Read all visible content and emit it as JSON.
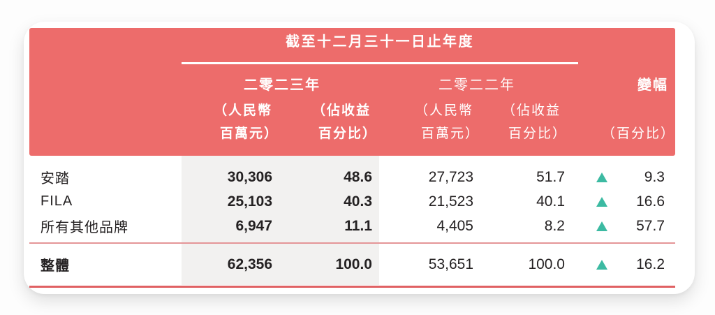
{
  "table": {
    "title": "截至十二月三十一日止年度",
    "columns": {
      "year_2023": {
        "label": "二零二三年",
        "rmb_line1": "（人民幣",
        "rmb_line2": "百萬元）",
        "pct_line1": "（佔收益",
        "pct_line2": "百分比）"
      },
      "year_2022": {
        "label": "二零二二年",
        "rmb_line1": "（人民幣",
        "rmb_line2": "百萬元）",
        "pct_line1": "（佔收益",
        "pct_line2": "百分比）"
      },
      "change": {
        "label": "變幅",
        "sub": "（百分比）"
      }
    },
    "rows": [
      {
        "name": "安踏",
        "y2023_rmb": "30,306",
        "y2023_pct": "48.6",
        "y2022_rmb": "27,723",
        "y2022_pct": "51.7",
        "change_dir": "up",
        "change_pct": "9.3"
      },
      {
        "name": "FILA",
        "y2023_rmb": "25,103",
        "y2023_pct": "40.3",
        "y2022_rmb": "21,523",
        "y2022_pct": "40.1",
        "change_dir": "up",
        "change_pct": "16.6"
      },
      {
        "name": "所有其他品牌",
        "y2023_rmb": "6,947",
        "y2023_pct": "11.1",
        "y2022_rmb": "4,405",
        "y2022_pct": "8.2",
        "change_dir": "up",
        "change_pct": "57.7"
      }
    ],
    "total": {
      "name": "整體",
      "y2023_rmb": "62,356",
      "y2023_pct": "100.0",
      "y2022_rmb": "53,651",
      "y2022_pct": "100.0",
      "change_dir": "up",
      "change_pct": "16.2"
    },
    "icons": {
      "change_up": "triangle-up"
    },
    "colors": {
      "header_bg": "#ED6C6B",
      "header_text": "#FFFFFF",
      "highlight_band": "#F2F1F0",
      "up_triangle": "#3CBAA2",
      "rule_thin": "#E49597",
      "rule_thick": "#E06163",
      "text_dark": "#242122"
    }
  }
}
